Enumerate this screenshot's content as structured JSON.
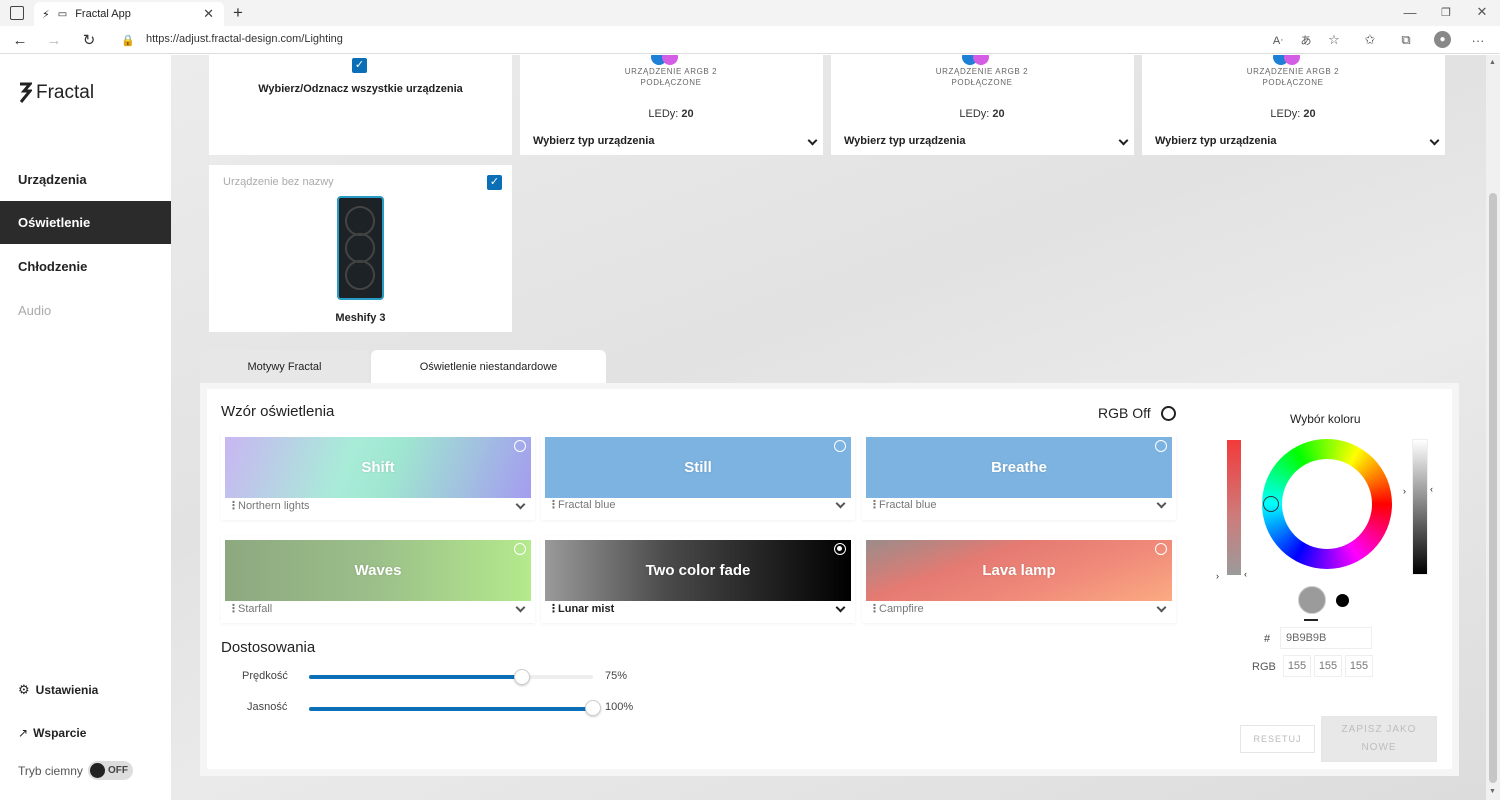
{
  "browser": {
    "tab_title": "Fractal App",
    "url": "https://adjust.fractal-design.com/Lighting"
  },
  "sidebar": {
    "logo": "Fractal",
    "items": [
      {
        "label": "Urządzenia"
      },
      {
        "label": "Oświetlenie"
      },
      {
        "label": "Chłodzenie"
      },
      {
        "label": "Audio"
      }
    ],
    "settings": "Ustawienia",
    "support": "Wsparcie",
    "dark_mode_label": "Tryb ciemny",
    "dark_mode_state": "OFF"
  },
  "devices": {
    "select_all": "Wybierz/Odznacz wszystkie urządzenia",
    "argb_cards": [
      {
        "status": "URZĄDZENIE ARGB 2 PODŁĄCZONE",
        "leds_label": "LEDy:",
        "leds_value": "20",
        "type_select": "Wybierz typ urządzenia"
      },
      {
        "status": "URZĄDZENIE ARGB 2 PODŁĄCZONE",
        "leds_label": "LEDy:",
        "leds_value": "20",
        "type_select": "Wybierz typ urządzenia"
      },
      {
        "status": "URZĄDZENIE ARGB 2 PODŁĄCZONE",
        "leds_label": "LEDy:",
        "leds_value": "20",
        "type_select": "Wybierz typ urządzenia"
      }
    ],
    "unnamed": {
      "label": "Urządzenie bez nazwy",
      "model": "Meshify 3"
    }
  },
  "tabs": [
    {
      "label": "Motywy Fractal"
    },
    {
      "label": "Oświetlenie niestandardowe"
    }
  ],
  "pattern": {
    "title": "Wzór oświetlenia",
    "rgb_off": "RGB Off",
    "tiles": [
      {
        "name": "Shift",
        "preset": "Northern lights",
        "selected": false
      },
      {
        "name": "Still",
        "preset": "Fractal blue",
        "selected": false
      },
      {
        "name": "Breathe",
        "preset": "Fractal blue",
        "selected": false
      },
      {
        "name": "Waves",
        "preset": "Starfall",
        "selected": false
      },
      {
        "name": "Two color fade",
        "preset": "Lunar mist",
        "selected": true
      },
      {
        "name": "Lava lamp",
        "preset": "Campfire",
        "selected": false
      }
    ]
  },
  "adjust": {
    "title": "Dostosowania",
    "speed_label": "Prędkość",
    "speed_value": "75%",
    "speed_fraction": 0.75,
    "brightness_label": "Jasność",
    "brightness_value": "100%",
    "brightness_fraction": 1.0
  },
  "color": {
    "title": "Wybór koloru",
    "hash": "#",
    "hex": "9B9B9B",
    "rgb_label": "RGB",
    "r": "155",
    "g": "155",
    "b": "155",
    "swatch_primary": "#9b9b9b",
    "swatch_secondary": "#000000",
    "accent": "#0b6fb8"
  },
  "actions": {
    "reset": "RESETUJ",
    "save_as_new": "ZAPISZ JAKO NOWE"
  }
}
